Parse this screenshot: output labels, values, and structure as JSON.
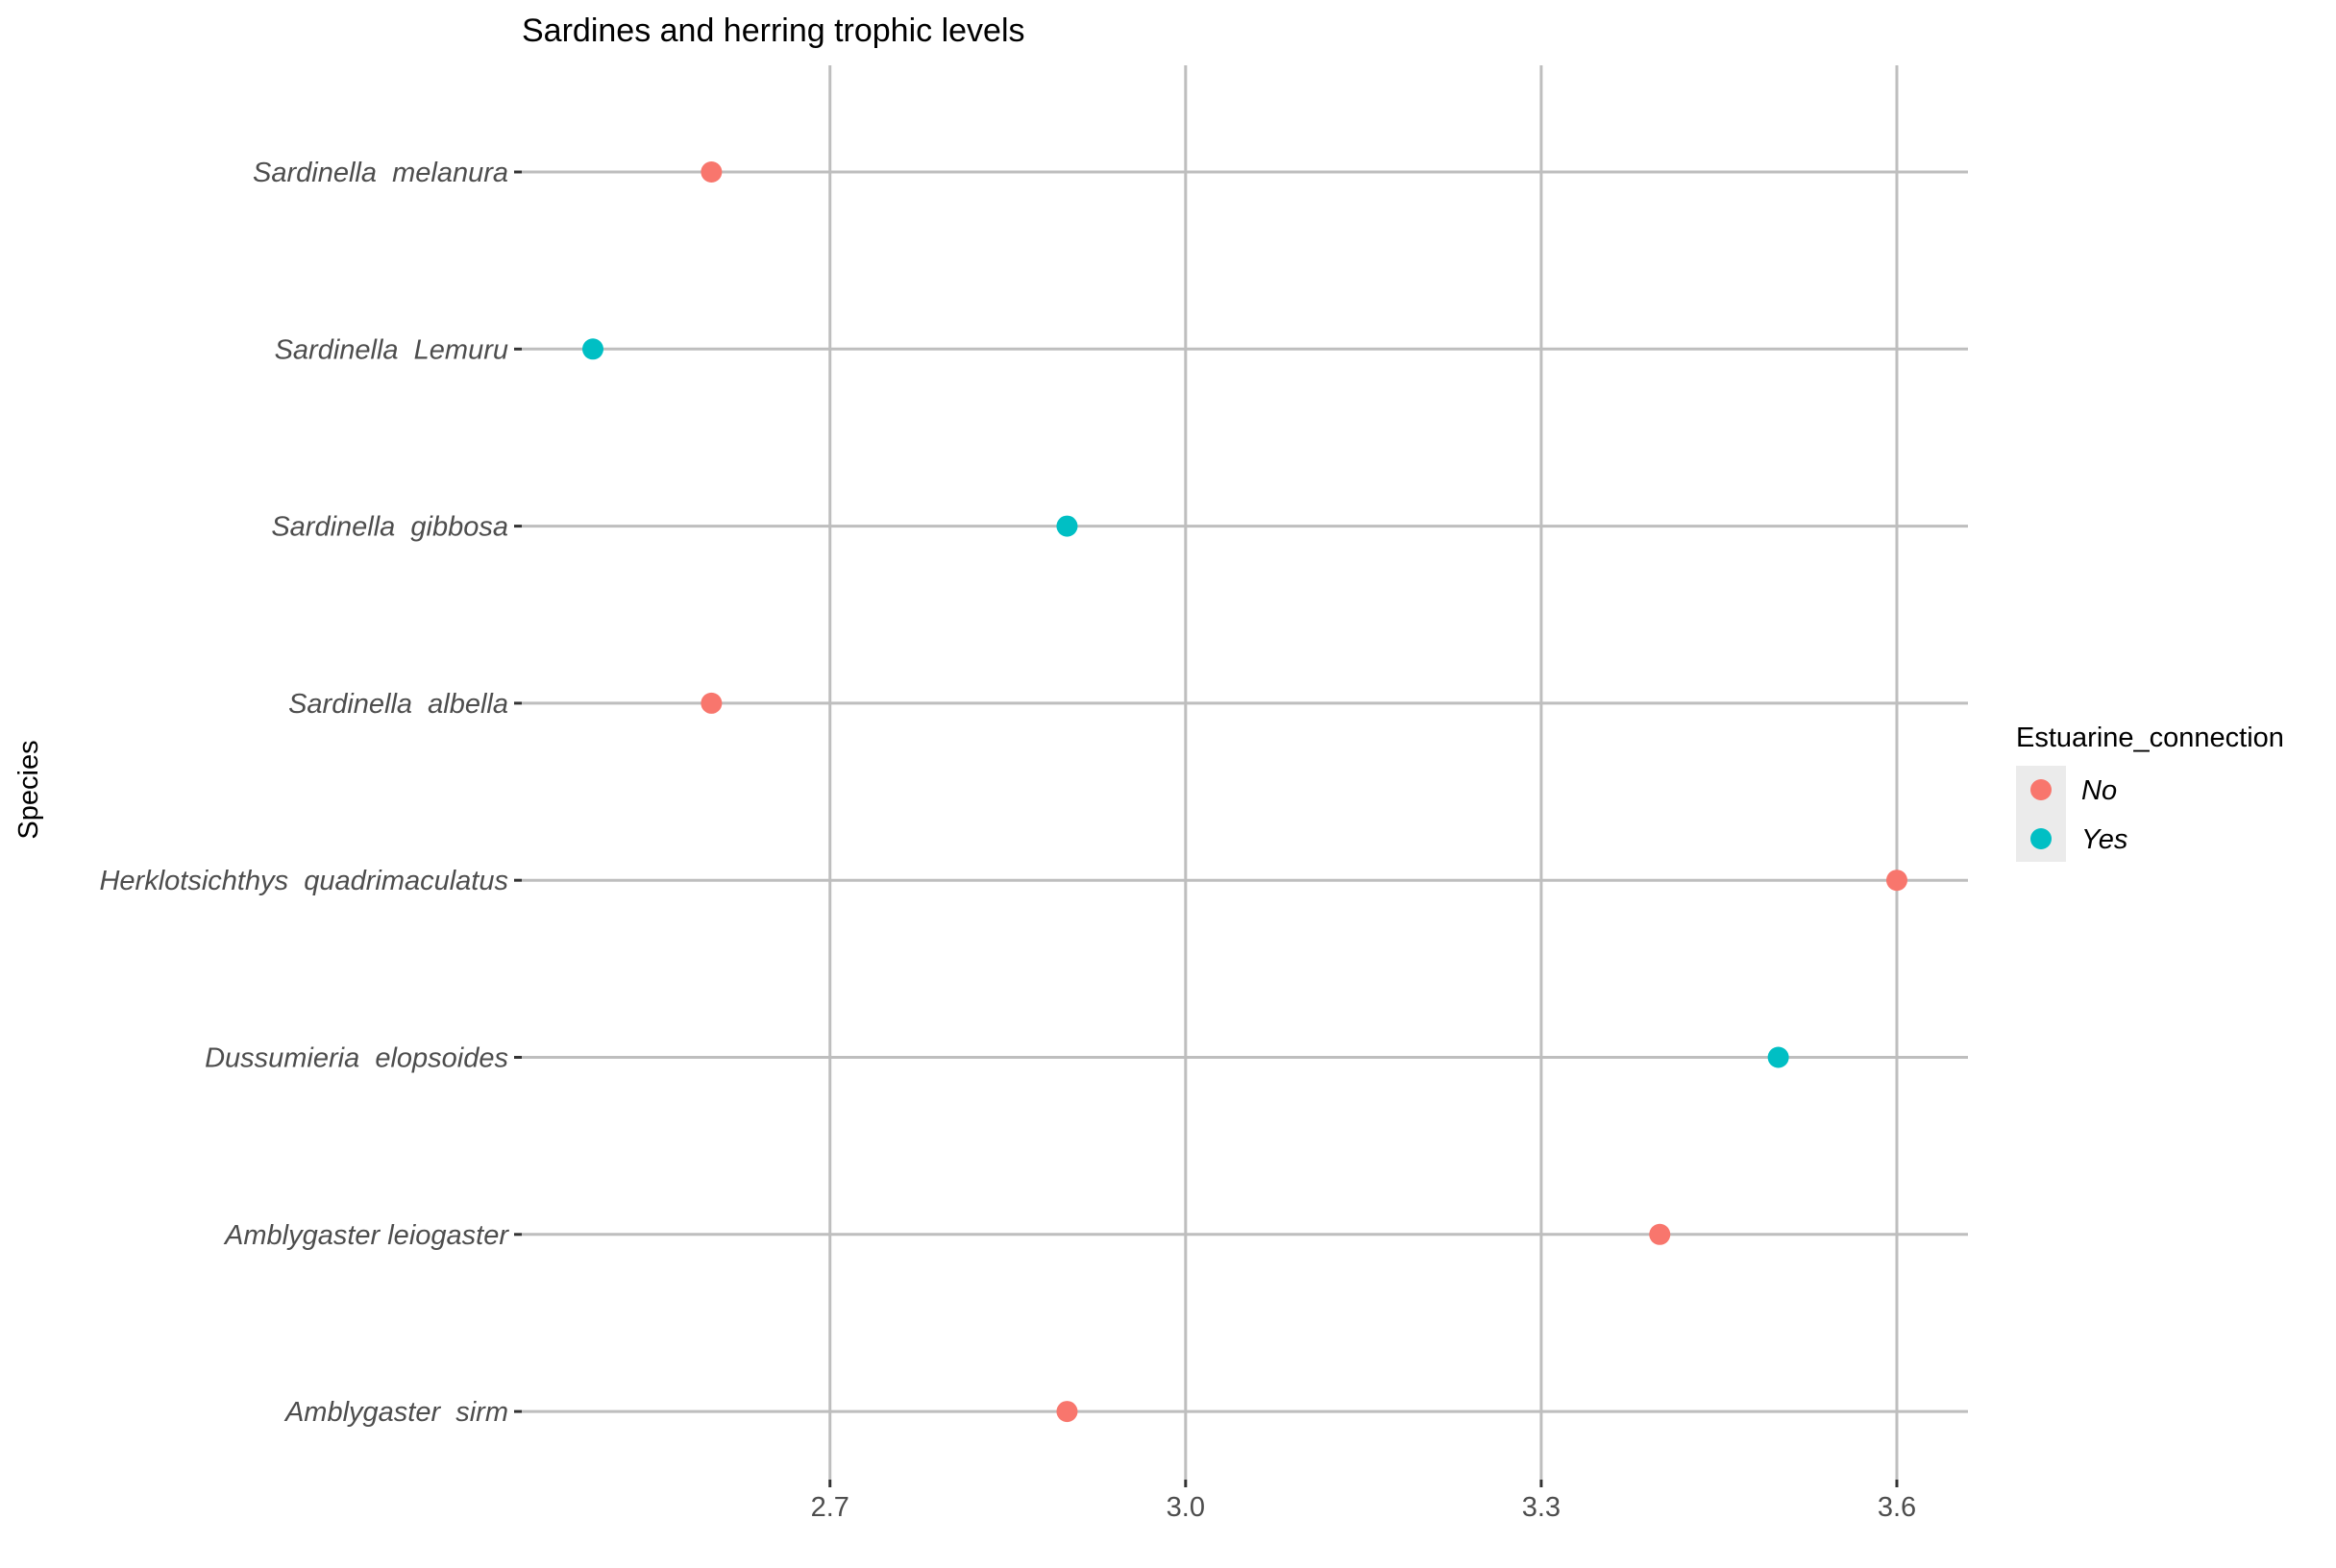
{
  "chart_data": {
    "type": "scatter",
    "title": "Sardines and herring trophic levels",
    "xlabel": "",
    "ylabel": "Species",
    "xlim": [
      2.44,
      3.66
    ],
    "x_ticks": [
      2.7,
      3.0,
      3.3,
      3.6
    ],
    "x_tick_labels": [
      "2.7",
      "3.0",
      "3.3",
      "3.6"
    ],
    "categories": [
      "Sardinella  melanura",
      "Sardinella  Lemuru",
      "Sardinella  gibbosa",
      "Sardinella  albella",
      "Herklotsichthys  quadrimaculatus",
      "Dussumieria  elopsoides",
      "Amblygaster leiogaster",
      "Amblygaster  sirm"
    ],
    "points": [
      {
        "species": "Sardinella  melanura",
        "x": 2.6,
        "group": "No"
      },
      {
        "species": "Sardinella  Lemuru",
        "x": 2.5,
        "group": "Yes"
      },
      {
        "species": "Sardinella  gibbosa",
        "x": 2.9,
        "group": "Yes"
      },
      {
        "species": "Sardinella  albella",
        "x": 2.6,
        "group": "No"
      },
      {
        "species": "Herklotsichthys  quadrimaculatus",
        "x": 3.6,
        "group": "No"
      },
      {
        "species": "Dussumieria  elopsoides",
        "x": 3.5,
        "group": "Yes"
      },
      {
        "species": "Amblygaster leiogaster",
        "x": 3.4,
        "group": "No"
      },
      {
        "species": "Amblygaster  sirm",
        "x": 2.9,
        "group": "No"
      }
    ],
    "grid": true,
    "legend": {
      "title": "Estuarine_connection",
      "placement": "right",
      "entries": [
        {
          "label": "No",
          "color": "#f8766d"
        },
        {
          "label": "Yes",
          "color": "#00bfc4"
        }
      ]
    }
  }
}
